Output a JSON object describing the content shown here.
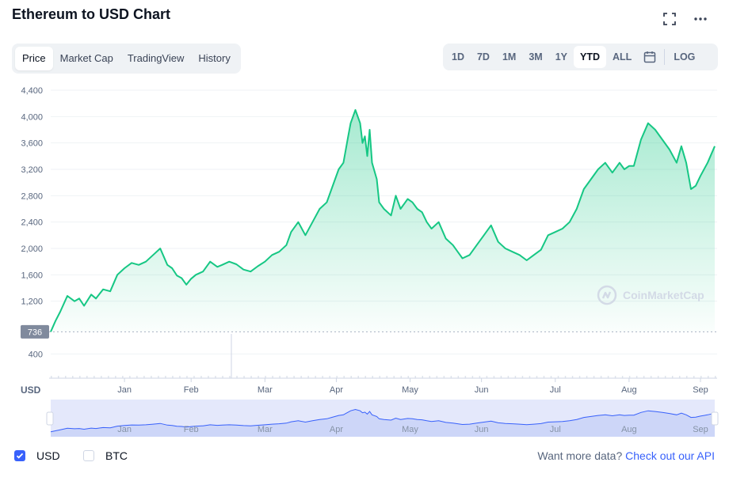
{
  "title": "Ethereum to USD Chart",
  "icons": {
    "expand": "expand-icon",
    "more": "more-horizontal-icon",
    "calendar": "calendar-icon",
    "check": "check-icon",
    "watermark": "coinmarketcap-logo-icon"
  },
  "tabs": [
    {
      "label": "Price",
      "active": true
    },
    {
      "label": "Market Cap",
      "active": false
    },
    {
      "label": "TradingView",
      "active": false
    },
    {
      "label": "History",
      "active": false
    }
  ],
  "ranges": [
    {
      "label": "1D",
      "active": false
    },
    {
      "label": "7D",
      "active": false
    },
    {
      "label": "1M",
      "active": false
    },
    {
      "label": "3M",
      "active": false
    },
    {
      "label": "1Y",
      "active": false
    },
    {
      "label": "YTD",
      "active": true
    },
    {
      "label": "ALL",
      "active": false
    }
  ],
  "log_label": "LOG",
  "watermark": "CoinMarketCap",
  "legend": [
    {
      "label": "USD",
      "checked": true
    },
    {
      "label": "BTC",
      "checked": false
    }
  ],
  "footer": {
    "prefix": "Want more data?",
    "link": "Check out our API"
  },
  "colors": {
    "line": "#16c784",
    "accent": "#3861fb",
    "navigator_fill": "#dfe4fb",
    "navigator_line": "#3861fb"
  },
  "chart_data": {
    "type": "area",
    "title": "",
    "ylabel": "USD",
    "ylim": [
      0,
      4400
    ],
    "yticks": [
      "400",
      "1,200",
      "1,600",
      "2,000",
      "2,400",
      "2,800",
      "3,200",
      "3,600",
      "4,000",
      "4,400"
    ],
    "ytick_values": [
      400,
      1200,
      1600,
      2000,
      2400,
      2800,
      3200,
      3600,
      4000,
      4400
    ],
    "x_months": [
      "Jan",
      "Feb",
      "Mar",
      "Apr",
      "May",
      "Jun",
      "Jul",
      "Aug",
      "Sep"
    ],
    "x_month_day": [
      31,
      59,
      90,
      120,
      151,
      181,
      212,
      243,
      273
    ],
    "baseline_label": "736",
    "baseline_value": 736,
    "series": [
      {
        "x_day": [
          0,
          2,
          4,
          7,
          10,
          12,
          14,
          17,
          19,
          22,
          25,
          28,
          31,
          34,
          37,
          40,
          43,
          46,
          49,
          51,
          53,
          55,
          57,
          59,
          61,
          64,
          67,
          70,
          72,
          75,
          78,
          81,
          84,
          87,
          90,
          93,
          96,
          99,
          101,
          104,
          107,
          110,
          113,
          116,
          118,
          121,
          123,
          124,
          125,
          126,
          128,
          130,
          131,
          132,
          133,
          134,
          135,
          137,
          138,
          140,
          143,
          145,
          147,
          150,
          152,
          154,
          156,
          158,
          160,
          163,
          166,
          169,
          171,
          173,
          176,
          179,
          182,
          185,
          188,
          191,
          194,
          197,
          200,
          203,
          206,
          209,
          212,
          215,
          218,
          221,
          224,
          227,
          230,
          233,
          236,
          239,
          241,
          243,
          245,
          248,
          251,
          254,
          257,
          260,
          263,
          265,
          267,
          269,
          271,
          273,
          276,
          279
        ],
        "y": [
          737,
          900,
          1040,
          1280,
          1200,
          1240,
          1130,
          1300,
          1240,
          1380,
          1350,
          1600,
          1700,
          1780,
          1750,
          1800,
          1900,
          2000,
          1750,
          1700,
          1590,
          1550,
          1450,
          1540,
          1600,
          1650,
          1800,
          1720,
          1750,
          1800,
          1760,
          1680,
          1650,
          1730,
          1800,
          1900,
          1950,
          2050,
          2250,
          2400,
          2200,
          2400,
          2600,
          2700,
          2900,
          3200,
          3300,
          3500,
          3700,
          3900,
          4100,
          3900,
          3600,
          3700,
          3400,
          3800,
          3300,
          3050,
          2700,
          2600,
          2500,
          2800,
          2600,
          2750,
          2700,
          2600,
          2550,
          2400,
          2300,
          2400,
          2150,
          2050,
          1950,
          1850,
          1900,
          2050,
          2200,
          2350,
          2100,
          2000,
          1950,
          1900,
          1820,
          1900,
          1980,
          2200,
          2250,
          2300,
          2400,
          2600,
          2900,
          3050,
          3200,
          3300,
          3150,
          3300,
          3200,
          3250,
          3250,
          3650,
          3900,
          3800,
          3650,
          3500,
          3300,
          3550,
          3300,
          2900,
          2950,
          3100,
          3300,
          3550
        ]
      }
    ],
    "navigator_months": [
      "Jan",
      "Feb",
      "Mar",
      "Apr",
      "May",
      "Jun",
      "Jul",
      "Aug",
      "Sep"
    ]
  }
}
